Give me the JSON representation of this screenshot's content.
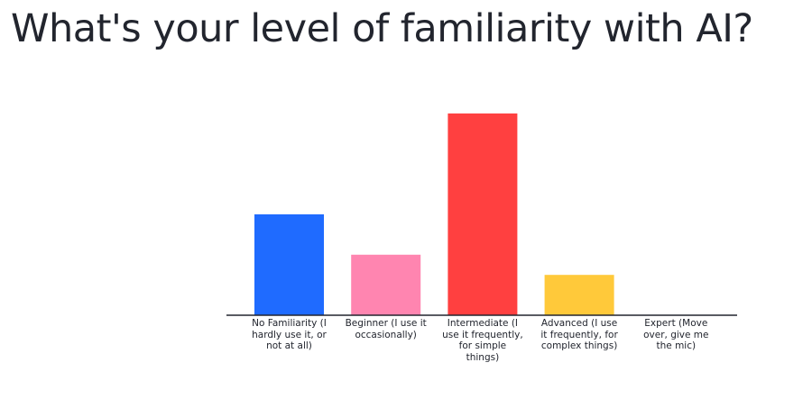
{
  "title": "What's your level of familiarity with AI?",
  "chart_data": {
    "type": "bar",
    "categories": [
      "No Familiarity (I hardly use it, or not at all)",
      "Beginner (I use it occasionally)",
      "Intermediate (I use it frequently, for simple things)",
      "Advanced (I use it frequently, for complex things)",
      "Expert (Move over, give me the mic)"
    ],
    "values": [
      5,
      3,
      10,
      2,
      0
    ],
    "colors": [
      "#1f6bff",
      "#ff85b0",
      "#ff4040",
      "#ffc93a",
      "#a0a0a0"
    ],
    "ylim": [
      0,
      10
    ],
    "grid": false,
    "legend": "none",
    "xlabel": "",
    "ylabel": "",
    "axis_color": "#22252e"
  }
}
